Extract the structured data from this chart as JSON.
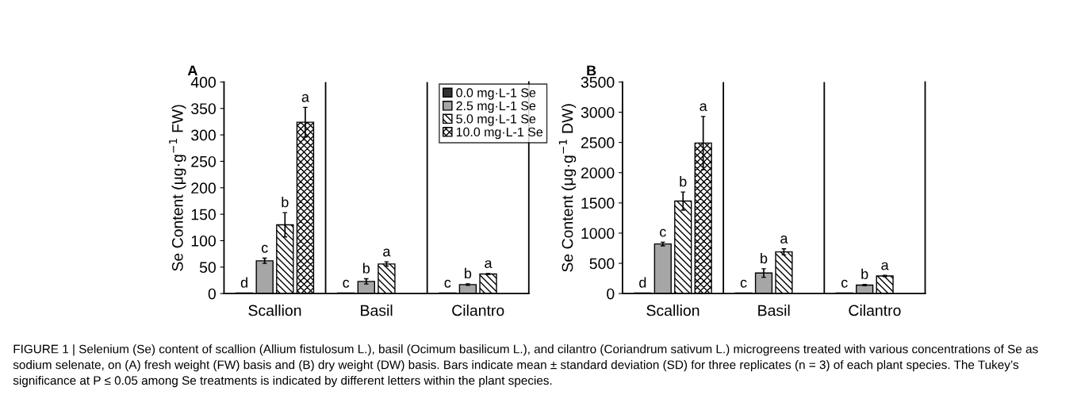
{
  "chart_data": [
    {
      "type": "bar",
      "title": "A",
      "ylabel": "Se Content (μg·g$^{−1}$ FW)",
      "categories": [
        "Scallion",
        "Basil",
        "Cilantro"
      ],
      "ylim": [
        0,
        400
      ],
      "yticks": [
        0,
        50,
        100,
        150,
        200,
        250,
        300,
        350,
        400
      ],
      "grid": false,
      "legend": "top right",
      "series": [
        {
          "name": "0.0 mg·L-1 Se",
          "color": "#333333",
          "values": [
            1,
            1,
            1
          ],
          "errors": [
            null,
            null,
            null
          ],
          "value_labels": [
            "d",
            "c",
            "c"
          ]
        },
        {
          "name": "2.5 mg·L-1 Se",
          "color": "#a6a6a6",
          "values": [
            62,
            23,
            17
          ],
          "errors": [
            5,
            5,
            1.5
          ],
          "value_labels": [
            "c",
            "b",
            "b"
          ]
        },
        {
          "name": "5.0 mg·L-1 Se",
          "color": "#000000",
          "values": [
            130,
            56,
            37
          ],
          "errors": [
            23,
            4,
            1
          ],
          "value_labels": [
            "b",
            "a",
            "a"
          ]
        },
        {
          "name": "10.0 mg·L-1 Se",
          "color": "#000000",
          "values": [
            324,
            null,
            null
          ],
          "errors": [
            28,
            null,
            null
          ],
          "value_labels": [
            "a",
            null,
            null
          ]
        }
      ],
      "annotations": [
        "FIGURE 1 | Selenium (Se) content of scallion (Allium fistulosum L.), basil (Ocimum basilicum L.), and cilantro (Coriandrum sativum L.) microgreens treated with various concentrations of Se as sodium selenate, on (A) fresh weight (FW) basis and (B) dry weight (DW) basis. Bars indicate mean ± standard deviation (SD) for three replicates (n = 3) of each plant species. The Tukey’s significance at P ≤ 0.05 among Se treatments is indicated by different letters within the plant species."
      ]
    },
    {
      "type": "bar",
      "title": "B",
      "ylabel": "Se Content (μg·g$^{−1}$ DW)",
      "categories": [
        "Scallion",
        "Basil",
        "Cilantro"
      ],
      "ylim": [
        0,
        3500
      ],
      "yticks": [
        0,
        500,
        1000,
        1500,
        2000,
        2500,
        3000,
        3500
      ],
      "grid": false,
      "series": [
        {
          "color": "#333333",
          "values": [
            10,
            10,
            10
          ],
          "errors": [
            null,
            null,
            null
          ],
          "value_labels": [
            "d",
            "c",
            "c"
          ]
        },
        {
          "color": "#a6a6a6",
          "values": [
            820,
            340,
            140
          ],
          "errors": [
            30,
            70,
            10
          ],
          "value_labels": [
            "c",
            "b",
            "b"
          ]
        },
        {
          "color": "#000000",
          "values": [
            1530,
            690,
            290
          ],
          "errors": [
            150,
            50,
            10
          ],
          "value_labels": [
            "b",
            "a",
            "a"
          ]
        },
        {
          "color": "#000000",
          "values": [
            2490,
            null,
            null
          ],
          "errors": [
            440,
            null,
            null
          ],
          "value_labels": [
            "a",
            null,
            null
          ]
        }
      ]
    }
  ]
}
